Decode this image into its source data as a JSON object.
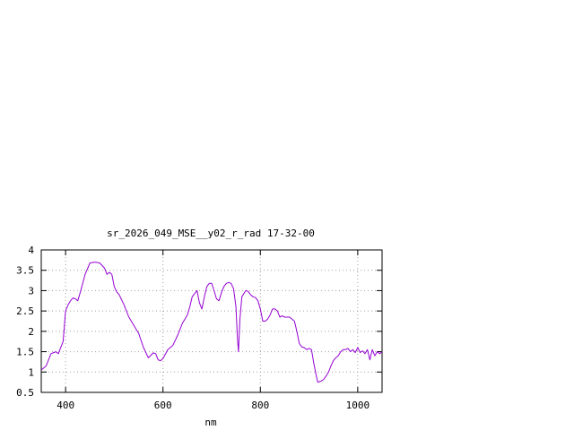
{
  "chart_data": {
    "type": "line",
    "title": "sr_2026_049_MSE__y02_r_rad 17-32-00",
    "xlabel": "nm",
    "ylabel": "",
    "xlim": [
      350,
      1050
    ],
    "ylim": [
      0.5,
      4
    ],
    "x_ticks": [
      400,
      600,
      800,
      1000
    ],
    "y_ticks": [
      0.5,
      1,
      1.5,
      2,
      2.5,
      3,
      3.5,
      4
    ],
    "x_tick_labels": [
      "400",
      "600",
      "800",
      "1000"
    ],
    "y_tick_labels": [
      "0.5",
      "1",
      "1.5",
      "2",
      "2.5",
      "3",
      "3.5",
      "4"
    ],
    "grid": true,
    "legend": "none",
    "series": [
      {
        "color": "#9400d3",
        "points": [
          [
            350,
            1.05
          ],
          [
            360,
            1.15
          ],
          [
            370,
            1.45
          ],
          [
            380,
            1.5
          ],
          [
            385,
            1.45
          ],
          [
            395,
            1.75
          ],
          [
            400,
            2.5
          ],
          [
            405,
            2.65
          ],
          [
            410,
            2.75
          ],
          [
            415,
            2.82
          ],
          [
            420,
            2.8
          ],
          [
            425,
            2.75
          ],
          [
            430,
            2.95
          ],
          [
            440,
            3.4
          ],
          [
            450,
            3.68
          ],
          [
            460,
            3.7
          ],
          [
            470,
            3.68
          ],
          [
            480,
            3.55
          ],
          [
            485,
            3.4
          ],
          [
            490,
            3.45
          ],
          [
            495,
            3.4
          ],
          [
            500,
            3.1
          ],
          [
            505,
            2.97
          ],
          [
            510,
            2.9
          ],
          [
            520,
            2.65
          ],
          [
            530,
            2.35
          ],
          [
            540,
            2.15
          ],
          [
            550,
            1.95
          ],
          [
            560,
            1.6
          ],
          [
            570,
            1.35
          ],
          [
            580,
            1.47
          ],
          [
            585,
            1.45
          ],
          [
            590,
            1.3
          ],
          [
            595,
            1.28
          ],
          [
            600,
            1.33
          ],
          [
            610,
            1.55
          ],
          [
            620,
            1.65
          ],
          [
            630,
            1.9
          ],
          [
            640,
            2.2
          ],
          [
            650,
            2.4
          ],
          [
            655,
            2.6
          ],
          [
            660,
            2.85
          ],
          [
            670,
            3.0
          ],
          [
            675,
            2.7
          ],
          [
            680,
            2.55
          ],
          [
            685,
            2.85
          ],
          [
            690,
            3.1
          ],
          [
            695,
            3.18
          ],
          [
            700,
            3.18
          ],
          [
            705,
            3.0
          ],
          [
            710,
            2.8
          ],
          [
            715,
            2.75
          ],
          [
            720,
            2.95
          ],
          [
            725,
            3.1
          ],
          [
            730,
            3.18
          ],
          [
            735,
            3.2
          ],
          [
            740,
            3.18
          ],
          [
            745,
            3.05
          ],
          [
            750,
            2.6
          ],
          [
            753,
            1.8
          ],
          [
            755,
            1.5
          ],
          [
            758,
            2.3
          ],
          [
            762,
            2.85
          ],
          [
            770,
            3.0
          ],
          [
            775,
            2.98
          ],
          [
            780,
            2.9
          ],
          [
            785,
            2.85
          ],
          [
            790,
            2.83
          ],
          [
            795,
            2.75
          ],
          [
            800,
            2.55
          ],
          [
            805,
            2.25
          ],
          [
            810,
            2.25
          ],
          [
            815,
            2.3
          ],
          [
            820,
            2.4
          ],
          [
            825,
            2.55
          ],
          [
            830,
            2.55
          ],
          [
            835,
            2.5
          ],
          [
            840,
            2.35
          ],
          [
            845,
            2.38
          ],
          [
            850,
            2.35
          ],
          [
            860,
            2.35
          ],
          [
            870,
            2.25
          ],
          [
            875,
            2.0
          ],
          [
            880,
            1.7
          ],
          [
            885,
            1.62
          ],
          [
            890,
            1.6
          ],
          [
            895,
            1.55
          ],
          [
            900,
            1.58
          ],
          [
            905,
            1.55
          ],
          [
            910,
            1.2
          ],
          [
            915,
            0.9
          ],
          [
            918,
            0.75
          ],
          [
            925,
            0.78
          ],
          [
            930,
            0.82
          ],
          [
            935,
            0.9
          ],
          [
            940,
            1.0
          ],
          [
            945,
            1.15
          ],
          [
            950,
            1.28
          ],
          [
            955,
            1.35
          ],
          [
            960,
            1.4
          ],
          [
            965,
            1.5
          ],
          [
            970,
            1.55
          ],
          [
            975,
            1.55
          ],
          [
            980,
            1.58
          ],
          [
            985,
            1.5
          ],
          [
            990,
            1.55
          ],
          [
            995,
            1.48
          ],
          [
            1000,
            1.6
          ],
          [
            1005,
            1.48
          ],
          [
            1010,
            1.52
          ],
          [
            1015,
            1.45
          ],
          [
            1020,
            1.55
          ],
          [
            1025,
            1.3
          ],
          [
            1030,
            1.55
          ],
          [
            1035,
            1.4
          ],
          [
            1040,
            1.5
          ],
          [
            1045,
            1.45
          ],
          [
            1050,
            1.5
          ]
        ]
      }
    ]
  }
}
